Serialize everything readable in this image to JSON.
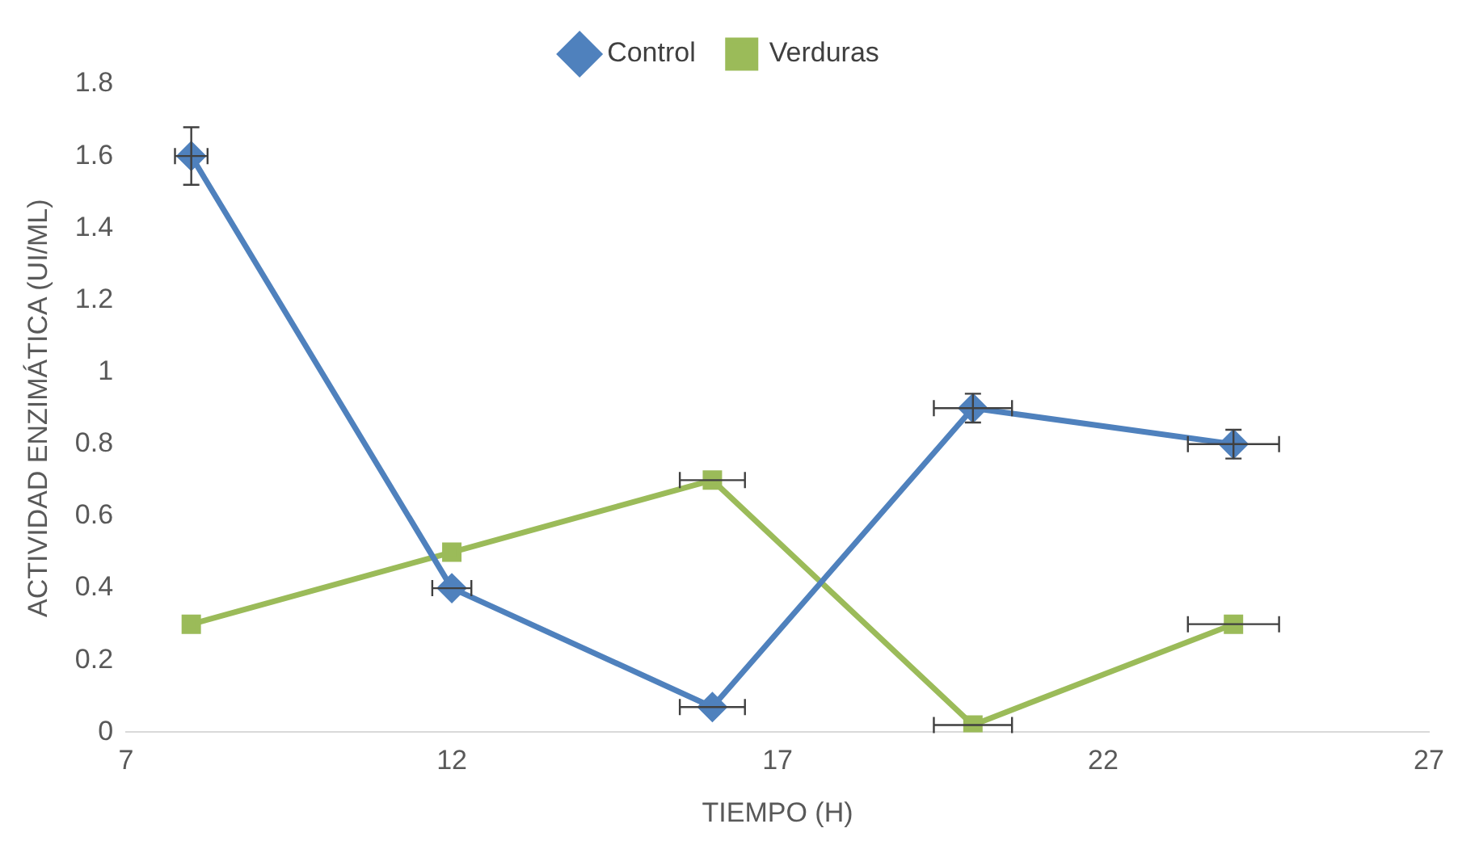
{
  "chart_data": {
    "type": "line",
    "xlabel": "TIEMPO (H)",
    "ylabel": "ACTIVIDAD ENZIMÁTICA (UI/ML)",
    "x": [
      8,
      12,
      16,
      20,
      24
    ],
    "series": [
      {
        "name": "Control",
        "color": "#4f81bd",
        "marker": "diamond",
        "values": [
          1.6,
          0.4,
          0.07,
          0.9,
          0.8
        ],
        "errors": [
          0.08,
          null,
          null,
          0.04,
          0.04
        ],
        "xerrors": [
          0.25,
          0.3,
          0.5,
          0.6,
          0.7
        ]
      },
      {
        "name": "Verduras",
        "color": "#9bbb59",
        "marker": "square",
        "values": [
          0.3,
          0.5,
          0.7,
          0.02,
          0.3
        ],
        "xerrors": [
          null,
          null,
          0.5,
          0.6,
          0.7
        ]
      }
    ],
    "xlim": [
      7,
      27
    ],
    "xticks": [
      7,
      12,
      17,
      22,
      27
    ],
    "ylim": [
      0,
      1.8
    ],
    "yticks": [
      0,
      0.2,
      0.4,
      0.6,
      0.8,
      1,
      1.2,
      1.4,
      1.6,
      1.8
    ],
    "grid": false,
    "legend": "top"
  }
}
